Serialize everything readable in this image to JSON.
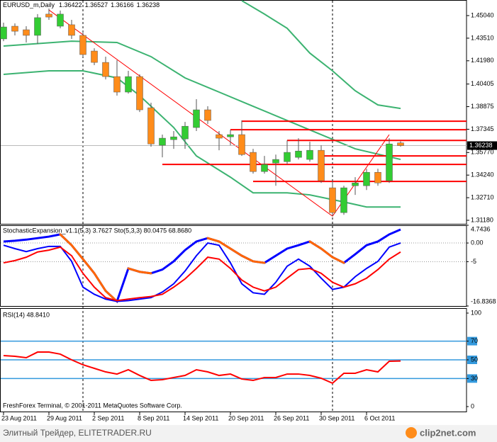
{
  "chart_data": [
    {
      "type": "candlestick",
      "symbol": "EURUSD_m,Daily",
      "header_labels": [
        "1.36422",
        "1.36527",
        "1.36166",
        "1.36238"
      ],
      "last_price_label": "1.36238",
      "categories": [
        "23 Aug 2011",
        null,
        null,
        null,
        "29 Aug 2011",
        null,
        null,
        null,
        "2 Sep 2011",
        null,
        null,
        null,
        "8 Sep 2011",
        null,
        null,
        null,
        "14 Sep 2011",
        null,
        null,
        null,
        "20 Sep 2011",
        null,
        null,
        null,
        "26 Sep 2011",
        null,
        null,
        null,
        "30 Sep 2011",
        null,
        null,
        null,
        "6 Oct 2011",
        null,
        null,
        null
      ],
      "open": [
        1.4346,
        1.4432,
        1.4408,
        1.437,
        1.4514,
        1.4432,
        1.4442,
        1.437,
        1.4264,
        1.4187,
        1.4091,
        1.3986,
        1.4091,
        1.388,
        1.3626,
        1.3664,
        1.3669,
        1.3746,
        1.3866,
        1.3698,
        1.3683,
        1.3698,
        1.3578,
        1.3448,
        1.3506,
        1.3515,
        1.3544,
        1.353,
        1.3592,
        1.3338,
        1.317,
        1.3352,
        1.3352,
        1.3443,
        1.3386,
        1.36422
      ],
      "high": [
        1.4456,
        1.4451,
        1.4432,
        1.4514,
        1.4552,
        1.4538,
        1.4475,
        1.4394,
        1.4283,
        1.4226,
        1.4202,
        1.413,
        1.4106,
        1.3914,
        1.3698,
        1.3722,
        1.3784,
        1.3938,
        1.389,
        1.3722,
        1.3731,
        1.3794,
        1.3602,
        1.3554,
        1.3563,
        1.3659,
        1.3674,
        1.365,
        1.3626,
        1.3386,
        1.3352,
        1.341,
        1.3467,
        1.3467,
        1.3674,
        1.36527
      ],
      "low": [
        1.4331,
        1.437,
        1.4322,
        1.4312,
        1.4475,
        1.4418,
        1.4346,
        1.4226,
        1.4168,
        1.4072,
        1.3962,
        1.3976,
        1.3851,
        1.3616,
        1.3544,
        1.3602,
        1.3602,
        1.3722,
        1.377,
        1.3592,
        1.3626,
        1.3554,
        1.3434,
        1.3434,
        1.3352,
        1.3496,
        1.353,
        1.3515,
        1.3371,
        1.3146,
        1.3155,
        1.329,
        1.3323,
        1.3352,
        1.3371,
        1.36166
      ],
      "close": [
        1.4427,
        1.4398,
        1.437,
        1.449,
        1.4494,
        1.4514,
        1.437,
        1.424,
        1.4187,
        1.4091,
        1.3986,
        1.4091,
        1.3866,
        1.3635,
        1.3674,
        1.3683,
        1.3755,
        1.3866,
        1.3794,
        1.3674,
        1.3698,
        1.3563,
        1.3448,
        1.3496,
        1.353,
        1.3578,
        1.3587,
        1.3592,
        1.3386,
        1.317,
        1.3338,
        1.3371,
        1.3443,
        1.3371,
        1.3635,
        1.36238
      ],
      "up_color": "#33cc33",
      "down_color": "#ff8c1a",
      "wick_color": "#555555",
      "ylim": [
        1.3094,
        1.46095
      ],
      "yticks": [
        {
          "value": 1.4504,
          "label": "1.45040"
        },
        {
          "value": 1.4351,
          "label": "1.43510"
        },
        {
          "value": 1.4198,
          "label": "1.41980"
        },
        {
          "value": 1.40405,
          "label": "1.40405"
        },
        {
          "value": 1.38875,
          "label": "1.38875"
        },
        {
          "value": 1.37345,
          "label": "1.37345"
        },
        {
          "value": 1.3577,
          "label": "1.35770"
        },
        {
          "value": 1.3424,
          "label": "1.34240"
        },
        {
          "value": 1.3271,
          "label": "1.32710"
        },
        {
          "value": 1.3118,
          "label": "1.31180"
        }
      ],
      "series": [
        {
          "color": "#3cb371",
          "x": [
            21,
            23,
            25,
            27,
            29,
            31,
            33,
            35
          ],
          "values": [
            1.4605,
            1.4514,
            1.4418,
            1.425,
            1.413,
            1.3995,
            1.3899,
            1.3875
          ]
        },
        {
          "color": "#3cb371",
          "x": [
            0,
            6,
            10,
            13,
            16,
            19,
            22,
            25,
            28,
            31,
            35
          ],
          "values": [
            1.4298,
            1.4331,
            1.4322,
            1.4226,
            1.4082,
            1.3986,
            1.389,
            1.3794,
            1.3698,
            1.3602,
            1.353
          ]
        },
        {
          "color": "#3cb371",
          "x": [
            0,
            4,
            7,
            10,
            12,
            15,
            17,
            20,
            22,
            25,
            27,
            30,
            32,
            35
          ],
          "values": [
            1.4106,
            1.413,
            1.413,
            1.4082,
            1.3962,
            1.3746,
            1.3554,
            1.341,
            1.3304,
            1.3304,
            1.329,
            1.3242,
            1.3208,
            1.3208
          ]
        }
      ],
      "trend": {
        "color": "#ff0000",
        "x": [
          4,
          29,
          34
        ],
        "values": [
          1.4542,
          1.3146,
          1.3698
        ]
      },
      "levels": {
        "color": "#ff0000",
        "values": [
          1.3789,
          1.3731,
          1.3659,
          1.3554,
          1.3496,
          1.3381
        ],
        "from": [
          21,
          20,
          25,
          28,
          14,
          22
        ]
      },
      "separators": [
        7,
        29
      ]
    },
    {
      "type": "line",
      "title": "StochasticExpansion_v1.1(5,3) 3.7627  Sto(5,3,3) 80.0475 68.8680",
      "ylim": [
        -16.8368,
        4.7436
      ],
      "yticks": [
        4.7436,
        {
          "value": 0,
          "label": "0.00"
        },
        -5,
        -16.8368
      ],
      "grid": "dotted",
      "series": [
        {
          "color": "#0000ff",
          "down_color": "#ff6600",
          "values": [
            0.4,
            0.6,
            0.9,
            1.3,
            1.7,
            2.3,
            -0.6,
            -4.3,
            -8.1,
            -12.8,
            -15.6,
            -6.8,
            -7.7,
            -8.1,
            -7.1,
            -4.9,
            -1.9,
            0.4,
            1.3,
            0.4,
            -1.5,
            -3.4,
            -4.9,
            -5.3,
            -3.4,
            -1.5,
            -0.6,
            0.4,
            -1.5,
            -3.8,
            -5.3,
            -3.0,
            -0.6,
            0.4,
            2.3,
            3.6
          ]
        },
        {
          "color": "#0000ff",
          "values": [
            -0.6,
            -1.5,
            -2.3,
            -1.5,
            -0.9,
            -0.9,
            -4.9,
            -11.8,
            -13.7,
            -15.0,
            -15.6,
            -15.4,
            -15.0,
            -14.6,
            -13.1,
            -10.9,
            -7.5,
            -3.4,
            0,
            -0.6,
            -5.3,
            -10.9,
            -13.3,
            -13.7,
            -10.5,
            -6.2,
            -4.3,
            -6.2,
            -9.4,
            -12.4,
            -11.8,
            -9.0,
            -6.8,
            -4.9,
            -1.1,
            0
          ]
        },
        {
          "color": "#ff0000",
          "values": [
            -5.3,
            -4.7,
            -3.8,
            -2.4,
            -1.9,
            -1.1,
            -3.4,
            -8.1,
            -11.8,
            -14.6,
            -15.4,
            -15.0,
            -14.6,
            -14.3,
            -13.7,
            -11.8,
            -9.6,
            -6.8,
            -3.8,
            -4.3,
            -6.8,
            -9.9,
            -11.8,
            -12.8,
            -11.8,
            -9.4,
            -7.1,
            -6.8,
            -8.1,
            -10.5,
            -11.8,
            -10.9,
            -9.4,
            -7.1,
            -4.3,
            -2.4
          ]
        }
      ]
    },
    {
      "type": "line",
      "title": "RSI(14) 48.8410",
      "annotation": "FreshForex Terminal, © 2001-2011 MetaQuotes Software Corp.",
      "ylim": [
        0,
        100
      ],
      "yticks": [
        100,
        70,
        50,
        30,
        0
      ],
      "levels": [
        70,
        50,
        30
      ],
      "level_color": "#3399dd",
      "series": [
        {
          "color": "#ff0000",
          "values": [
            54.5,
            53.8,
            52.3,
            58.3,
            58.3,
            56.1,
            50.0,
            44.7,
            40.9,
            37.1,
            34.8,
            39.4,
            33.3,
            28.0,
            28.8,
            31.1,
            33.3,
            39.4,
            37.1,
            33.3,
            34.8,
            29.5,
            28.0,
            31.1,
            31.1,
            34.8,
            34.8,
            33.3,
            30.3,
            25.0,
            35.6,
            35.6,
            39.4,
            37.1,
            48.5,
            48.8
          ]
        }
      ]
    }
  ],
  "footer": {
    "watermark": "Элитный Трейдер, ELITETRADER.RU",
    "logo": "clip2net.com"
  }
}
